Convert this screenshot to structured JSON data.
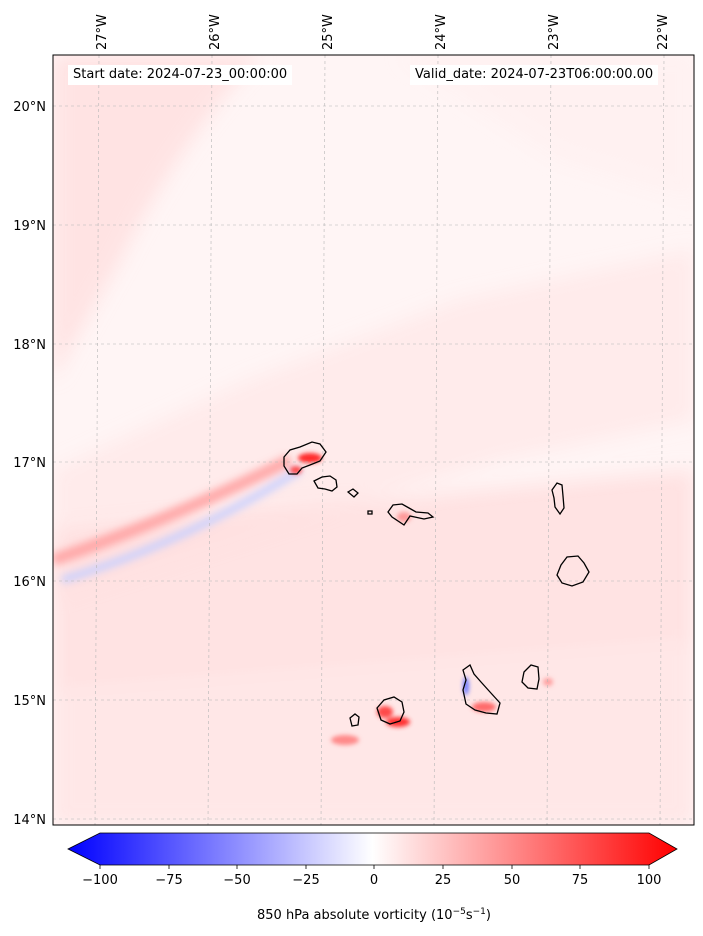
{
  "map": {
    "start_date_text": "Start date: 2024-07-23_00:00:00",
    "valid_date_text": "Valid_date: 2024-07-23T06:00:00.00",
    "lon_labels": [
      "27°W",
      "26°W",
      "25°W",
      "24°W",
      "23°W",
      "22°W"
    ],
    "lat_labels": [
      "20°N",
      "19°N",
      "18°N",
      "17°N",
      "16°N",
      "15°N",
      "14°N"
    ],
    "colorbar": {
      "ticks": [
        "−100",
        "−75",
        "−50",
        "−25",
        "0",
        "25",
        "50",
        "75",
        "100"
      ],
      "label": "850 hPa absolute vorticity (10",
      "label_exp1": "−5",
      "label_mid": "s",
      "label_exp2": "−1",
      "label_end": ")",
      "min": -100,
      "max": 100,
      "colors": {
        "negative": "#0000ff",
        "zero": "#ffffff",
        "positive": "#ff0000"
      }
    },
    "islands": [
      "Santo Antão",
      "São Vicente",
      "Santa Luzia",
      "São Nicolau",
      "Sal",
      "Boa Vista",
      "Brava",
      "Fogo",
      "Santiago",
      "Maio"
    ]
  }
}
